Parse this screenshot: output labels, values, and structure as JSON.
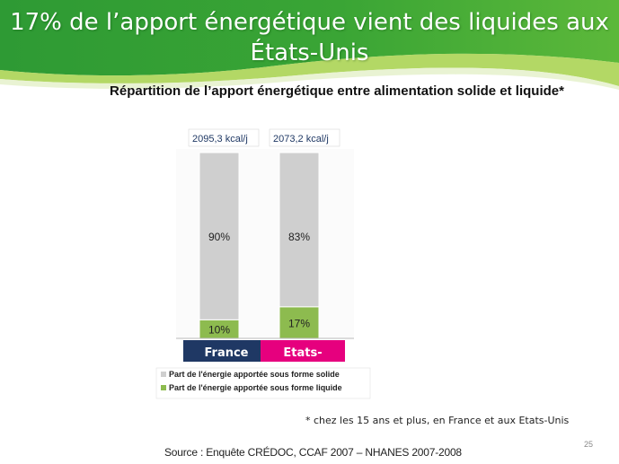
{
  "slide": {
    "title": "17% de l’apport énergétique vient des liquides aux États-Unis",
    "footnote": "* chez les 15 ans et plus, en France et aux Etats-Unis",
    "source": "Source : Enquête CRÉDOC, CCAF 2007 – NHANES 2007-2008",
    "page_number": "25"
  },
  "colors": {
    "banner_green": "#3aa535",
    "banner_light": "#a6d14a",
    "solid_gray": "#cfcfcf",
    "liquid_green": "#8dbb4f",
    "france_label": "#1f3864",
    "usa_label": "#e6007e"
  },
  "chart_data": {
    "type": "bar",
    "stacked": "percent",
    "title": "Répartition de l’apport énergétique entre alimentation solide et liquide*",
    "categories": [
      "France",
      "Etats-"
    ],
    "totals": [
      "2095,3 kcal/j",
      "2073,2 kcal/j"
    ],
    "series": [
      {
        "name": "Part de l'énergie apportée sous forme liquide",
        "values": [
          10,
          17
        ],
        "labels": [
          "10%",
          "17%"
        ],
        "color": "#8dbb4f"
      },
      {
        "name": "Part de l'énergie apportée sous forme solide",
        "values": [
          90,
          83
        ],
        "labels": [
          "90%",
          "83%"
        ],
        "color": "#cfcfcf"
      }
    ],
    "legend": [
      {
        "label": "Part de l'énergie apportée sous forme solide",
        "color": "#cfcfcf"
      },
      {
        "label": "Part de l'énergie apportée sous forme liquide",
        "color": "#8dbb4f"
      }
    ],
    "ylim": [
      0,
      100
    ],
    "grid": false,
    "legend_position": "bottom"
  }
}
